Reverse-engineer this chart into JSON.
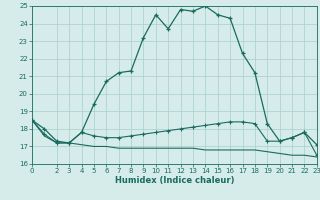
{
  "xlabel": "Humidex (Indice chaleur)",
  "background_color": "#d6ecea",
  "grid_color": "#a8cfc9",
  "line_color": "#1a6b5e",
  "xlim": [
    0,
    23
  ],
  "ylim": [
    16,
    25
  ],
  "xticks": [
    0,
    2,
    3,
    4,
    5,
    6,
    7,
    8,
    9,
    10,
    11,
    12,
    13,
    14,
    15,
    16,
    17,
    18,
    19,
    20,
    21,
    22,
    23
  ],
  "yticks": [
    16,
    17,
    18,
    19,
    20,
    21,
    22,
    23,
    24,
    25
  ],
  "curve1_x": [
    0,
    1,
    2,
    3,
    4,
    5,
    6,
    7,
    8,
    9,
    10,
    11,
    12,
    13,
    14,
    15,
    16,
    17,
    18,
    19,
    20,
    21,
    22,
    23
  ],
  "curve1_y": [
    18.5,
    18.0,
    17.3,
    17.2,
    17.8,
    19.4,
    20.7,
    21.2,
    21.3,
    23.2,
    24.5,
    23.7,
    24.8,
    24.7,
    25.0,
    24.5,
    24.3,
    22.3,
    21.2,
    18.3,
    17.3,
    17.5,
    17.8,
    17.1
  ],
  "curve2_x": [
    0,
    1,
    2,
    3,
    4,
    5,
    6,
    7,
    8,
    9,
    10,
    11,
    12,
    13,
    14,
    15,
    16,
    17,
    18,
    19,
    20,
    21,
    22,
    23
  ],
  "curve2_y": [
    18.5,
    17.7,
    17.2,
    17.2,
    17.8,
    17.6,
    17.5,
    17.5,
    17.6,
    17.7,
    17.8,
    17.9,
    18.0,
    18.1,
    18.2,
    18.3,
    18.4,
    18.4,
    18.3,
    17.3,
    17.3,
    17.5,
    17.8,
    16.5
  ],
  "curve3_x": [
    0,
    1,
    2,
    3,
    4,
    5,
    6,
    7,
    8,
    9,
    10,
    11,
    12,
    13,
    14,
    15,
    16,
    17,
    18,
    19,
    20,
    21,
    22,
    23
  ],
  "curve3_y": [
    18.5,
    17.6,
    17.2,
    17.2,
    17.1,
    17.0,
    17.0,
    16.9,
    16.9,
    16.9,
    16.9,
    16.9,
    16.9,
    16.9,
    16.8,
    16.8,
    16.8,
    16.8,
    16.8,
    16.7,
    16.6,
    16.5,
    16.5,
    16.4
  ]
}
